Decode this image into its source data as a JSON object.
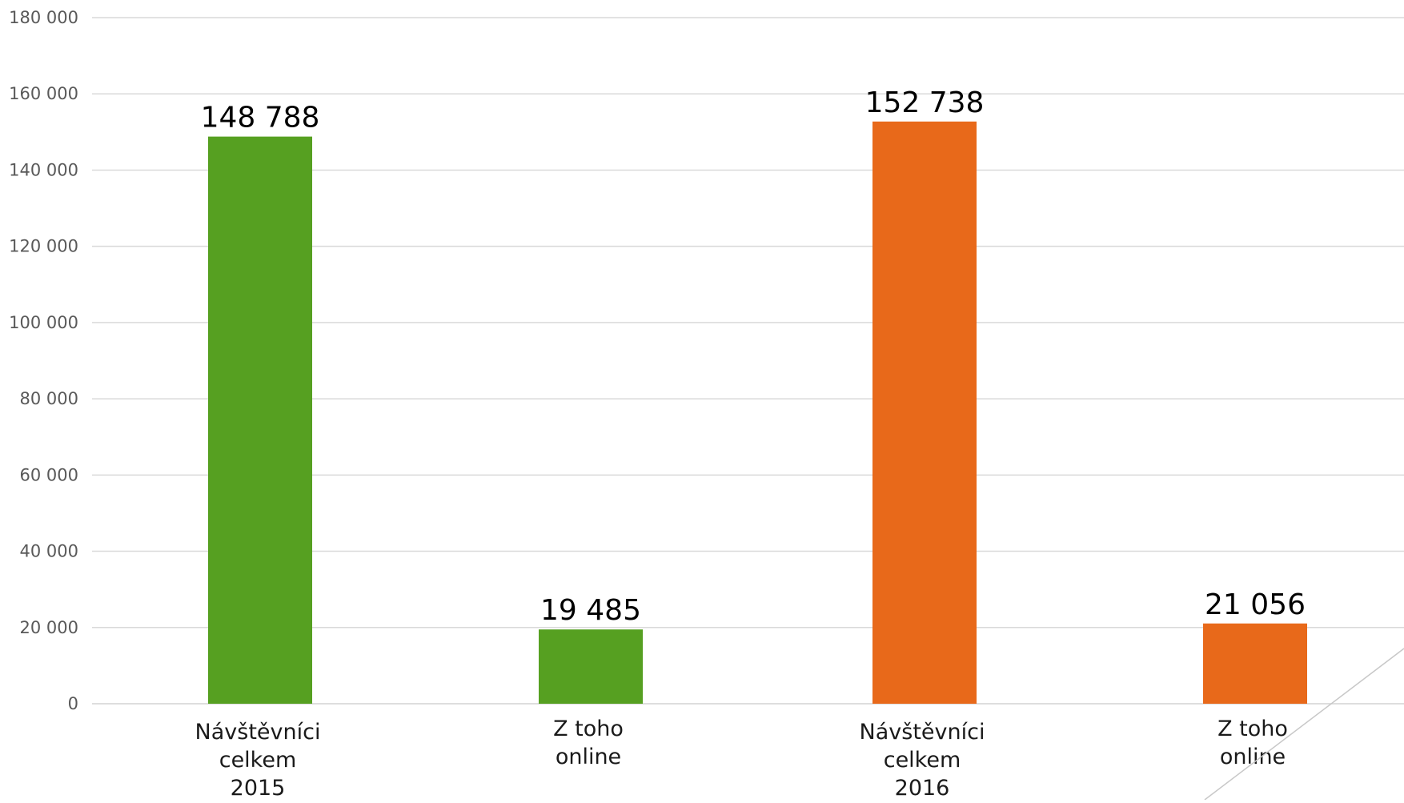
{
  "chart_data": {
    "type": "bar",
    "categories": [
      [
        "Návštěvníci",
        "celkem",
        "2015"
      ],
      [
        "Z toho",
        "online"
      ],
      [
        "Návštěvníci",
        "celkem",
        "2016"
      ],
      [
        "Z toho",
        "online"
      ]
    ],
    "values": [
      148788,
      19485,
      152738,
      21056
    ],
    "data_labels": [
      "148 788",
      "19 485",
      "152 738",
      "21 056"
    ],
    "colors": [
      "#56a021",
      "#56a021",
      "#e8691a",
      "#e8691a"
    ],
    "ylim": [
      0,
      180000
    ],
    "yticks": [
      0,
      20000,
      40000,
      60000,
      80000,
      100000,
      120000,
      140000,
      160000,
      180000
    ],
    "ytick_labels": [
      "0",
      "20 000",
      "40 000",
      "60 000",
      "80 000",
      "100 000",
      "120 000",
      "140 000",
      "160 000",
      "180 000"
    ],
    "grid": true,
    "title": "",
    "xlabel": "",
    "ylabel": ""
  }
}
